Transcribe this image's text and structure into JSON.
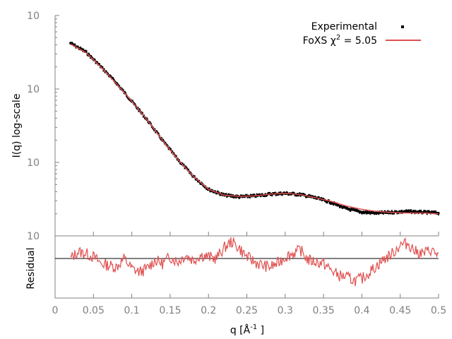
{
  "chart_data": [
    {
      "type": "line",
      "panel": "main",
      "ylabel": "I(q) log-scale",
      "yscale": "log",
      "xlim": [
        0,
        0.5
      ],
      "ylim": [
        1,
        1000
      ],
      "grid": false,
      "legend_placement": "top-right",
      "y_tick_labels": [
        {
          "base": "10",
          "exp": "0"
        },
        {
          "base": "10",
          "exp": "1"
        },
        {
          "base": "10",
          "exp": "2"
        },
        {
          "base": "10",
          "exp": "3"
        }
      ],
      "series": [
        {
          "name": "Experimental",
          "style": "points",
          "color": "#000000",
          "x": [
            0.02,
            0.04,
            0.06,
            0.08,
            0.1,
            0.12,
            0.14,
            0.16,
            0.18,
            0.2,
            0.22,
            0.24,
            0.26,
            0.28,
            0.3,
            0.32,
            0.34,
            0.36,
            0.38,
            0.4,
            0.42,
            0.44,
            0.46,
            0.48,
            0.5
          ],
          "y": [
            420,
            320,
            200,
            120,
            68,
            38,
            20,
            11,
            6.5,
            4.3,
            3.6,
            3.4,
            3.5,
            3.7,
            3.8,
            3.65,
            3.3,
            2.85,
            2.35,
            2.1,
            2.05,
            2.1,
            2.15,
            2.1,
            2.05
          ]
        },
        {
          "name": "FoXS χ² = 5.05",
          "legend_label": "FoXS χ",
          "legend_sup": "2",
          "legend_suffix": " = 5.05",
          "style": "line",
          "color": "#e05050",
          "x": [
            0.02,
            0.04,
            0.06,
            0.08,
            0.1,
            0.12,
            0.14,
            0.16,
            0.18,
            0.2,
            0.22,
            0.24,
            0.26,
            0.28,
            0.3,
            0.32,
            0.34,
            0.36,
            0.38,
            0.4,
            0.42,
            0.44,
            0.46,
            0.48,
            0.5
          ],
          "y": [
            410,
            315,
            198,
            118,
            68,
            38,
            20,
            11,
            6.5,
            4.3,
            3.6,
            3.45,
            3.5,
            3.7,
            3.8,
            3.65,
            3.3,
            2.95,
            2.55,
            2.3,
            2.15,
            2.08,
            2.05,
            2.05,
            2.0
          ]
        }
      ]
    },
    {
      "type": "line",
      "panel": "residual",
      "xlabel": "q [Å",
      "xlabel_sup": "-1",
      "xlabel_suffix": " ]",
      "ylabel": "Residual",
      "xlim": [
        0,
        0.5
      ],
      "x_tick_labels": [
        "0",
        "0.05",
        "0.1",
        "0.15",
        "0.2",
        "0.25",
        "0.3",
        "0.35",
        "0.4",
        "0.45",
        "0.5"
      ],
      "zero_line": true,
      "series": [
        {
          "name": "Residual",
          "color": "#e05050",
          "x": [
            0.02,
            0.03,
            0.04,
            0.05,
            0.06,
            0.07,
            0.08,
            0.09,
            0.1,
            0.11,
            0.12,
            0.13,
            0.14,
            0.15,
            0.16,
            0.17,
            0.18,
            0.19,
            0.2,
            0.21,
            0.22,
            0.23,
            0.24,
            0.25,
            0.26,
            0.27,
            0.28,
            0.29,
            0.3,
            0.31,
            0.32,
            0.33,
            0.34,
            0.35,
            0.36,
            0.37,
            0.38,
            0.39,
            0.4,
            0.41,
            0.42,
            0.43,
            0.44,
            0.45,
            0.46,
            0.47,
            0.48,
            0.49,
            0.5
          ],
          "y": [
            0,
            0.4,
            0.3,
            0.1,
            -0.3,
            -0.4,
            -0.5,
            0,
            -0.6,
            -0.8,
            -0.6,
            -0.1,
            -0.3,
            0.1,
            -0.2,
            0.2,
            -0.1,
            0.2,
            0.1,
            0,
            0.6,
            1.0,
            0.6,
            0.1,
            -0.2,
            -0.4,
            -0.5,
            -0.3,
            0.1,
            0.3,
            0.5,
            -0.1,
            -0.2,
            -0.3,
            -0.7,
            -1.0,
            -1.1,
            -1.3,
            -1.2,
            -0.8,
            -0.4,
            0,
            0.3,
            0.8,
            0.9,
            0.4,
            0.3,
            0.5,
            0.2
          ]
        }
      ]
    }
  ]
}
